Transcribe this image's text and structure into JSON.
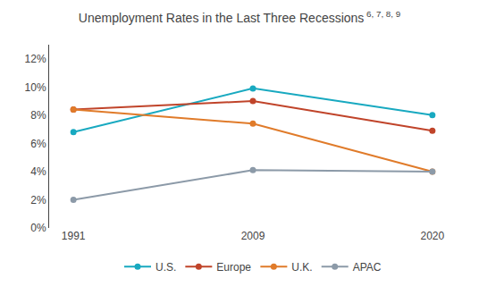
{
  "chart_data": {
    "type": "line",
    "title": "Unemployment Rates in the Last Three Recessions",
    "annotations": [
      "6, 7, 8, 9"
    ],
    "categories": [
      "1991",
      "2009",
      "2020"
    ],
    "series": [
      {
        "name": "U.S.",
        "color": "#18a9c0",
        "marker": "circle",
        "values": [
          6.8,
          9.9,
          8.0
        ]
      },
      {
        "name": "Europe",
        "color": "#c0442a",
        "marker": "circle",
        "values": [
          8.4,
          9.0,
          6.9
        ]
      },
      {
        "name": "U.K.",
        "color": "#e07b2a",
        "marker": "circle",
        "values": [
          8.4,
          7.4,
          4.0
        ]
      },
      {
        "name": "APAC",
        "color": "#8c9aa8",
        "marker": "circle",
        "values": [
          2.0,
          4.1,
          4.0
        ]
      }
    ],
    "ylim": [
      0,
      13
    ],
    "yticks": [
      {
        "value": 0,
        "label": "0%"
      },
      {
        "value": 2,
        "label": "2%"
      },
      {
        "value": 4,
        "label": "4%"
      },
      {
        "value": 6,
        "label": "6%"
      },
      {
        "value": 8,
        "label": "8%"
      },
      {
        "value": 10,
        "label": "10%"
      },
      {
        "value": 12,
        "label": "12%"
      }
    ],
    "grid": false,
    "legend": "bottom"
  }
}
